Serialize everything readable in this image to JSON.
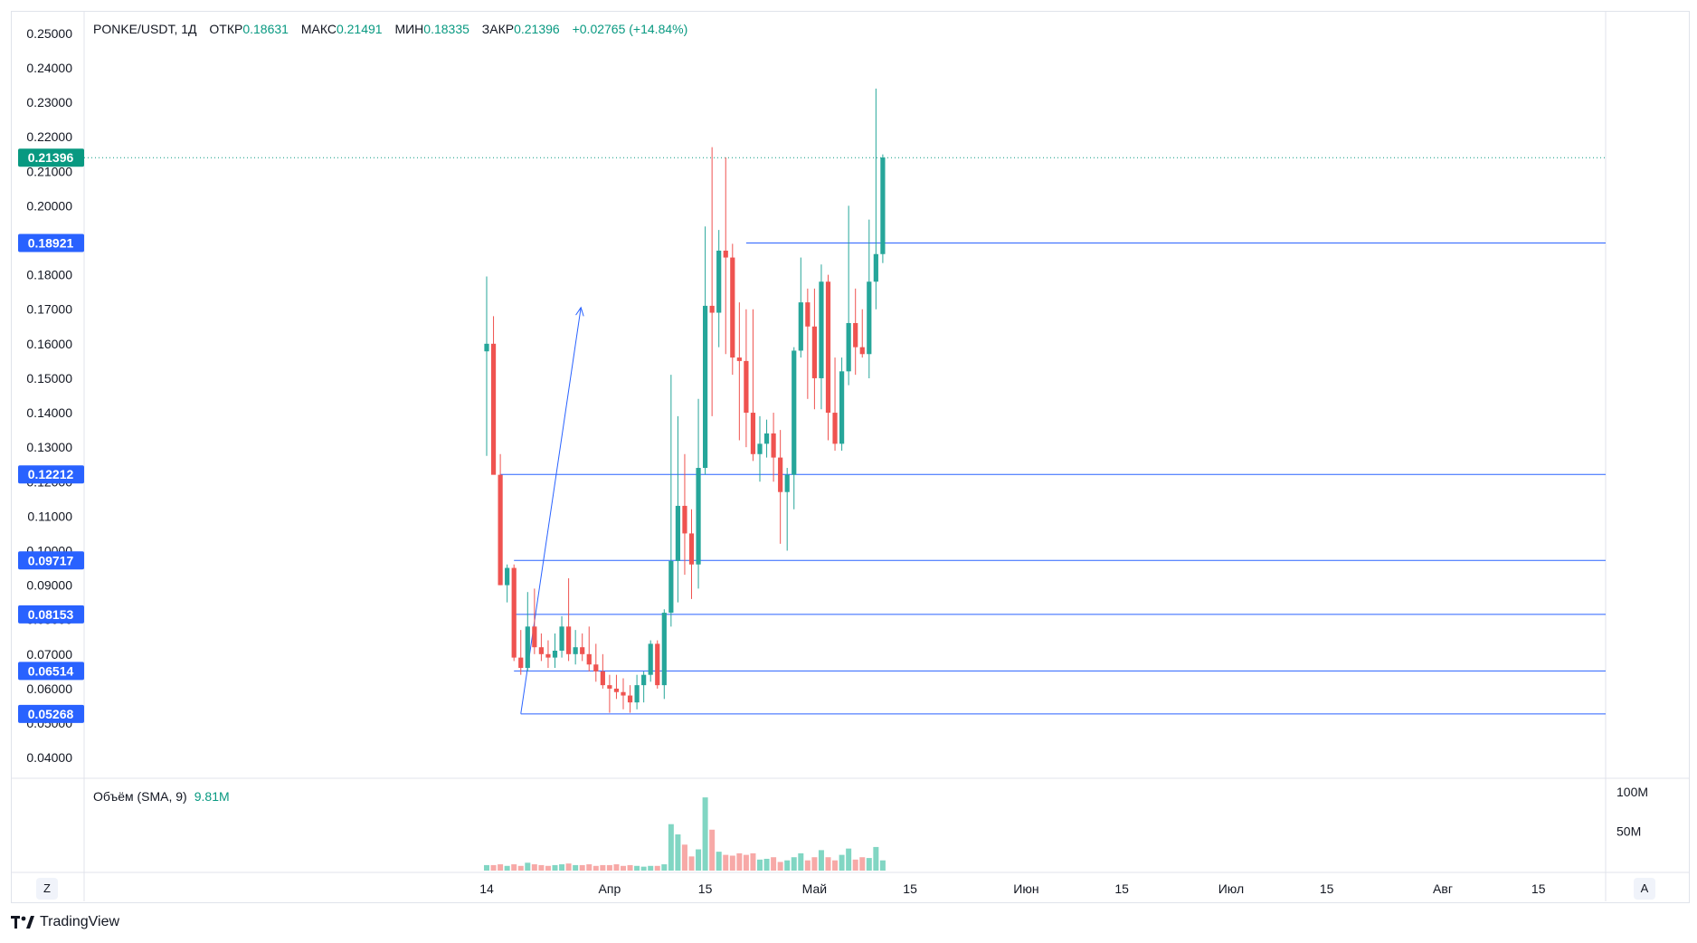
{
  "header": {
    "symbol": "PONKE/USDT, 1Д",
    "open_label": "ОТКР",
    "open_value": "0.18631",
    "high_label": "МАКС",
    "high_value": "0.21491",
    "low_label": "МИН",
    "low_value": "0.18335",
    "close_label": "ЗАКР",
    "close_value": "0.21396",
    "change": "+0.02765 (+14.84%)"
  },
  "volume_legend": {
    "label": "Объём (SMA, 9)",
    "value": "9.81M"
  },
  "buttons": {
    "z": "Z",
    "a": "A"
  },
  "brand": {
    "name": "TradingView"
  },
  "colors": {
    "up": "#26a69a",
    "down": "#ef5350",
    "line": "#2962ff",
    "last": "#089981",
    "vol_up": "#81d6c3",
    "vol_down": "#f7a9a7"
  },
  "chart_data": {
    "type": "candlestick",
    "price_ticks": [
      "0.04000",
      "0.05000",
      "0.06000",
      "0.07000",
      "0.08000",
      "0.09000",
      "0.10000",
      "0.11000",
      "0.12000",
      "0.13000",
      "0.14000",
      "0.15000",
      "0.16000",
      "0.17000",
      "0.18000",
      "0.19000",
      "0.20000",
      "0.21000",
      "0.22000",
      "0.23000",
      "0.24000",
      "0.25000"
    ],
    "ylim": [
      0.034,
      0.256
    ],
    "x_labels": [
      {
        "day": 0,
        "text": "14"
      },
      {
        "day": 18,
        "text": "Апр"
      },
      {
        "day": 32,
        "text": "15"
      },
      {
        "day": 48,
        "text": "Май"
      },
      {
        "day": 62,
        "text": "15"
      },
      {
        "day": 79,
        "text": "Июн"
      },
      {
        "day": 93,
        "text": "15"
      },
      {
        "day": 109,
        "text": "Июл"
      },
      {
        "day": 123,
        "text": "15"
      },
      {
        "day": 140,
        "text": "Авг"
      },
      {
        "day": 154,
        "text": "15"
      }
    ],
    "horizontal_levels": [
      {
        "price": 0.18921,
        "label": "0.18921",
        "from_day": 38
      },
      {
        "price": 0.12212,
        "label": "0.12212",
        "from_day": 2
      },
      {
        "price": 0.09717,
        "label": "0.09717",
        "from_day": 4
      },
      {
        "price": 0.08153,
        "label": "0.08153",
        "from_day": 4
      },
      {
        "price": 0.06514,
        "label": "0.06514",
        "from_day": 4
      },
      {
        "price": 0.05268,
        "label": "0.05268",
        "from_day": 5
      }
    ],
    "last_price": {
      "price": 0.21396,
      "label": "0.21396"
    },
    "arrow": {
      "from": [
        5,
        0.0527
      ],
      "to": [
        13.8,
        0.1705
      ]
    },
    "volume_ticks": [
      "100M",
      "50M"
    ],
    "volume_max": 115,
    "candles": [
      [
        0.1578,
        0.1795,
        0.1275,
        0.16
      ],
      [
        0.16,
        0.168,
        0.123,
        0.122
      ],
      [
        0.122,
        0.128,
        0.09,
        0.09
      ],
      [
        0.09,
        0.096,
        0.085,
        0.095
      ],
      [
        0.095,
        0.096,
        0.068,
        0.069
      ],
      [
        0.069,
        0.077,
        0.064,
        0.066
      ],
      [
        0.066,
        0.088,
        0.065,
        0.078
      ],
      [
        0.078,
        0.089,
        0.07,
        0.072
      ],
      [
        0.072,
        0.076,
        0.068,
        0.07
      ],
      [
        0.07,
        0.074,
        0.066,
        0.069
      ],
      [
        0.069,
        0.076,
        0.066,
        0.071
      ],
      [
        0.071,
        0.081,
        0.069,
        0.078
      ],
      [
        0.078,
        0.092,
        0.068,
        0.07
      ],
      [
        0.07,
        0.077,
        0.067,
        0.072
      ],
      [
        0.072,
        0.076,
        0.068,
        0.07
      ],
      [
        0.07,
        0.078,
        0.065,
        0.067
      ],
      [
        0.067,
        0.073,
        0.062,
        0.065
      ],
      [
        0.065,
        0.07,
        0.06,
        0.061
      ],
      [
        0.061,
        0.064,
        0.053,
        0.06
      ],
      [
        0.06,
        0.064,
        0.057,
        0.059
      ],
      [
        0.059,
        0.063,
        0.054,
        0.058
      ],
      [
        0.058,
        0.061,
        0.053,
        0.056
      ],
      [
        0.056,
        0.064,
        0.054,
        0.061
      ],
      [
        0.061,
        0.065,
        0.056,
        0.064
      ],
      [
        0.064,
        0.074,
        0.062,
        0.073
      ],
      [
        0.073,
        0.074,
        0.06,
        0.061
      ],
      [
        0.061,
        0.083,
        0.057,
        0.082
      ],
      [
        0.082,
        0.151,
        0.078,
        0.097
      ],
      [
        0.097,
        0.139,
        0.085,
        0.113
      ],
      [
        0.113,
        0.128,
        0.093,
        0.105
      ],
      [
        0.105,
        0.112,
        0.086,
        0.096
      ],
      [
        0.096,
        0.144,
        0.089,
        0.124
      ],
      [
        0.124,
        0.194,
        0.122,
        0.171
      ],
      [
        0.171,
        0.217,
        0.139,
        0.169
      ],
      [
        0.169,
        0.193,
        0.159,
        0.187
      ],
      [
        0.187,
        0.214,
        0.157,
        0.185
      ],
      [
        0.185,
        0.189,
        0.151,
        0.156
      ],
      [
        0.156,
        0.172,
        0.132,
        0.155
      ],
      [
        0.155,
        0.17,
        0.13,
        0.14
      ],
      [
        0.14,
        0.17,
        0.126,
        0.128
      ],
      [
        0.128,
        0.139,
        0.12,
        0.131
      ],
      [
        0.131,
        0.138,
        0.127,
        0.134
      ],
      [
        0.134,
        0.14,
        0.12,
        0.127
      ],
      [
        0.127,
        0.135,
        0.102,
        0.117
      ],
      [
        0.117,
        0.124,
        0.1,
        0.122
      ],
      [
        0.122,
        0.159,
        0.112,
        0.158
      ],
      [
        0.158,
        0.185,
        0.156,
        0.172
      ],
      [
        0.172,
        0.176,
        0.144,
        0.165
      ],
      [
        0.165,
        0.176,
        0.141,
        0.15
      ],
      [
        0.15,
        0.183,
        0.141,
        0.178
      ],
      [
        0.178,
        0.18,
        0.132,
        0.14
      ],
      [
        0.14,
        0.156,
        0.129,
        0.131
      ],
      [
        0.131,
        0.156,
        0.129,
        0.152
      ],
      [
        0.152,
        0.2,
        0.148,
        0.166
      ],
      [
        0.166,
        0.176,
        0.151,
        0.159
      ],
      [
        0.159,
        0.17,
        0.156,
        0.157
      ],
      [
        0.157,
        0.196,
        0.15,
        0.178
      ],
      [
        0.178,
        0.234,
        0.17,
        0.186
      ],
      [
        0.186,
        0.2149,
        0.1834,
        0.214
      ]
    ],
    "volumes": [
      7,
      7,
      8,
      6,
      8,
      6,
      10,
      8,
      7,
      6,
      7,
      8,
      9,
      7,
      7,
      8,
      6,
      7,
      7,
      8,
      6,
      7,
      6,
      5,
      6,
      6,
      8,
      59,
      46,
      33,
      18,
      27,
      93,
      52,
      24,
      20,
      19,
      22,
      20,
      22,
      14,
      15,
      17,
      11,
      13,
      17,
      22,
      13,
      17,
      26,
      17,
      13,
      20,
      28,
      14,
      17,
      16,
      30,
      13
    ]
  }
}
